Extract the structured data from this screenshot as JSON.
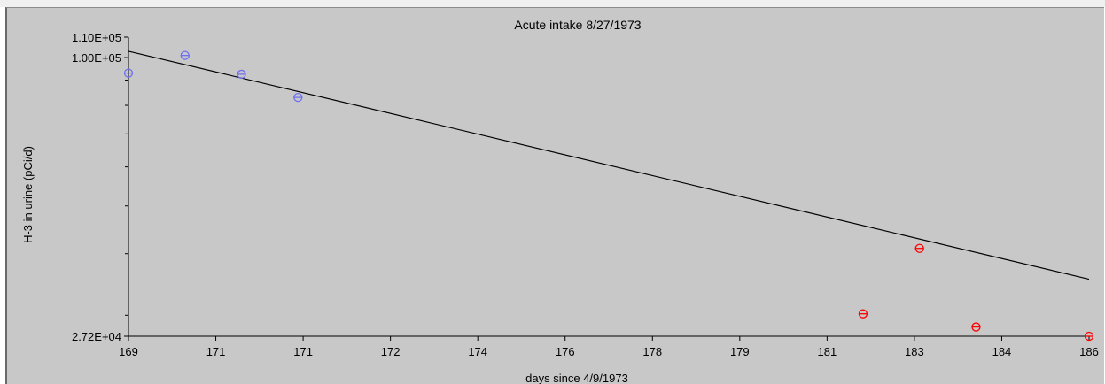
{
  "chart_data": {
    "type": "scatter",
    "title": "Acute intake 8/27/1973",
    "xlabel": "days since 4/9/1973",
    "ylabel": "H-3 in urine (pCi/d)",
    "x_tick_labels": [
      "169",
      "171",
      "171",
      "172",
      "174",
      "176",
      "178",
      "179",
      "181",
      "183",
      "184",
      "186"
    ],
    "y_tick_labels": [
      "1.10E+05",
      "1.00E+05",
      "2.72E+04"
    ],
    "xlim": [
      169,
      186
    ],
    "ylim": [
      27200,
      110000
    ],
    "y_scale": "log",
    "grid": false,
    "series": [
      {
        "marker": "circle-with-bar",
        "color": "#6f6ff0",
        "points": [
          {
            "x": 169.0,
            "y": 93000
          },
          {
            "x": 170.0,
            "y": 101000
          },
          {
            "x": 171.0,
            "y": 92500
          },
          {
            "x": 172.0,
            "y": 83000
          }
        ]
      },
      {
        "marker": "circle-with-bar",
        "color": "#ff0000",
        "points": [
          {
            "x": 182.0,
            "y": 30200
          },
          {
            "x": 183.0,
            "y": 41000
          },
          {
            "x": 184.0,
            "y": 28400
          },
          {
            "x": 186.0,
            "y": 27200
          }
        ]
      }
    ],
    "fit_line": {
      "color": "#000000",
      "points": [
        {
          "x": 169.0,
          "y": 103000
        },
        {
          "x": 186.0,
          "y": 35500
        }
      ]
    }
  }
}
